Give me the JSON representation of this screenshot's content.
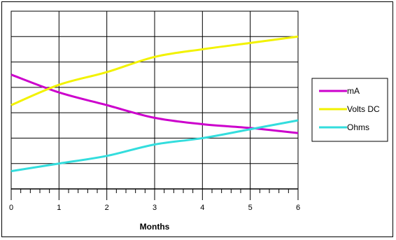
{
  "chart_data": {
    "type": "line",
    "xlabel": "Months",
    "ylabel": "",
    "x": [
      0,
      1,
      2,
      3,
      4,
      5,
      6
    ],
    "xlim": [
      0,
      6
    ],
    "ylim": [
      0,
      7
    ],
    "y_gridlines": 7,
    "grid": true,
    "legend_position": "right",
    "series": [
      {
        "name": "mA",
        "color": "#cc00cc",
        "values": [
          4.5,
          3.8,
          3.3,
          2.8,
          2.55,
          2.4,
          2.2
        ]
      },
      {
        "name": "Volts  DC",
        "color": "#f2f200",
        "values": [
          3.3,
          4.1,
          4.6,
          5.2,
          5.5,
          5.75,
          6.0
        ]
      },
      {
        "name": "Ohms",
        "color": "#33dddd",
        "values": [
          0.7,
          1.0,
          1.3,
          1.75,
          2.0,
          2.35,
          2.7
        ]
      }
    ]
  }
}
